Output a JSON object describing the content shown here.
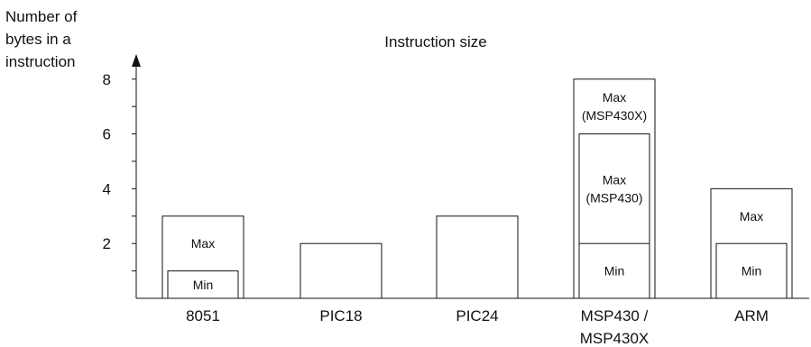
{
  "chart_data": {
    "type": "bar",
    "title": "Instruction size",
    "ylabel": [
      "Number of",
      "bytes in a",
      "instruction"
    ],
    "xlabel": "",
    "ylim": [
      0,
      8
    ],
    "y_ticks_labeled": [
      2,
      4,
      6,
      8
    ],
    "y_ticks_minor": [
      1,
      3,
      5,
      7
    ],
    "grid": false,
    "categories": [
      [
        "8051"
      ],
      [
        "PIC18"
      ],
      [
        "PIC24"
      ],
      [
        "MSP430 /",
        "MSP430X"
      ],
      [
        "ARM"
      ]
    ],
    "bars": [
      {
        "category_index": 0,
        "value": 3,
        "label": [
          "Max"
        ]
      },
      {
        "category_index": 0,
        "value": 1,
        "label": [
          "Min"
        ]
      },
      {
        "category_index": 1,
        "value": 2,
        "label": []
      },
      {
        "category_index": 2,
        "value": 3,
        "label": []
      },
      {
        "category_index": 3,
        "value": 8,
        "label": [
          "Max",
          "(MSP430X)"
        ]
      },
      {
        "category_index": 3,
        "value": 6,
        "label": [
          "Max",
          "(MSP430)"
        ]
      },
      {
        "category_index": 3,
        "value": 2,
        "label": [
          "Min"
        ]
      },
      {
        "category_index": 4,
        "value": 4,
        "label": [
          "Max"
        ]
      },
      {
        "category_index": 4,
        "value": 2,
        "label": [
          "Min"
        ]
      }
    ],
    "colors": {
      "bar_fill": "#ffffff",
      "stroke": "#111111"
    }
  }
}
